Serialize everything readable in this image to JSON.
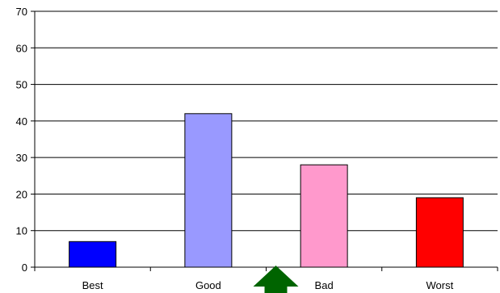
{
  "chart_data": {
    "type": "bar",
    "categories": [
      "Best",
      "Good",
      "Bad",
      "Worst"
    ],
    "values": [
      7,
      42,
      28,
      19
    ],
    "colors": [
      "#0000ff",
      "#9999ff",
      "#ff99cc",
      "#ff0000"
    ],
    "ylim": [
      0,
      70
    ],
    "yticks": [
      0,
      10,
      20,
      30,
      40,
      50,
      60,
      70
    ],
    "grid": true,
    "legend": "none",
    "annotation": {
      "shape": "arrow",
      "direction": "up",
      "color": "#006400",
      "position": "between Good and Bad"
    }
  }
}
